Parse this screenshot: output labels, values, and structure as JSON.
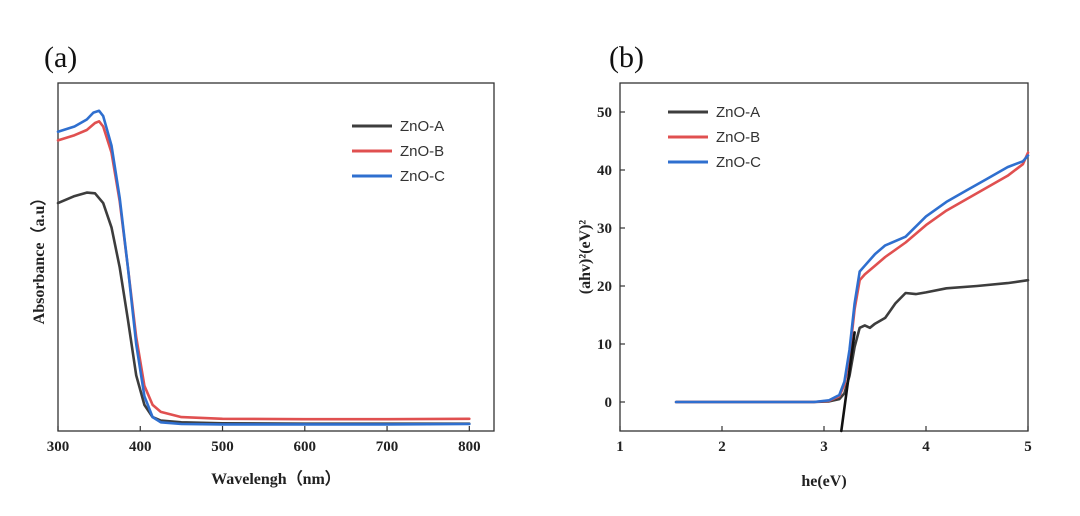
{
  "chart_data": [
    {
      "panel": "(a)",
      "type": "line",
      "xlabel": "Wavelengh（nm）",
      "ylabel": "Absorbance（a.u）",
      "xlim": [
        300,
        830
      ],
      "ylim": [
        0,
        1.0
      ],
      "xticks": [
        300,
        400,
        500,
        600,
        700,
        800
      ],
      "yticks_visible": false,
      "grid": false,
      "legend": "top-right",
      "series": [
        {
          "name": "ZnO-A",
          "color": "#3d3d3d",
          "x": [
            300,
            320,
            335,
            345,
            355,
            365,
            375,
            385,
            395,
            405,
            415,
            425,
            450,
            500,
            600,
            700,
            800
          ],
          "y": [
            0.655,
            0.675,
            0.685,
            0.683,
            0.655,
            0.585,
            0.47,
            0.32,
            0.16,
            0.075,
            0.04,
            0.03,
            0.025,
            0.022,
            0.021,
            0.021,
            0.021
          ]
        },
        {
          "name": "ZnO-B",
          "color": "#e05050",
          "x": [
            300,
            320,
            335,
            345,
            350,
            355,
            365,
            375,
            385,
            395,
            405,
            415,
            425,
            450,
            500,
            600,
            700,
            800
          ],
          "y": [
            0.835,
            0.85,
            0.865,
            0.885,
            0.89,
            0.875,
            0.8,
            0.66,
            0.47,
            0.27,
            0.13,
            0.075,
            0.055,
            0.04,
            0.035,
            0.034,
            0.034,
            0.035
          ]
        },
        {
          "name": "ZnO-C",
          "color": "#2f6fcf",
          "x": [
            300,
            320,
            335,
            343,
            350,
            355,
            365,
            375,
            385,
            395,
            405,
            415,
            425,
            450,
            500,
            600,
            700,
            800
          ],
          "y": [
            0.86,
            0.875,
            0.895,
            0.915,
            0.92,
            0.905,
            0.82,
            0.67,
            0.47,
            0.25,
            0.1,
            0.04,
            0.025,
            0.02,
            0.019,
            0.019,
            0.019,
            0.02
          ]
        }
      ]
    },
    {
      "panel": "(b)",
      "type": "line",
      "xlabel": "he(eV)",
      "ylabel": "(ahv)²(eV)²",
      "xlim": [
        1,
        5
      ],
      "ylim": [
        -5,
        55
      ],
      "xticks": [
        1,
        2,
        3,
        4,
        5
      ],
      "yticks": [
        0,
        10,
        20,
        30,
        40,
        50
      ],
      "grid": false,
      "legend": "top-left",
      "series": [
        {
          "name": "ZnO-A",
          "color": "#3d3d3d",
          "x": [
            1.55,
            2.0,
            2.5,
            2.9,
            3.05,
            3.15,
            3.2,
            3.25,
            3.3,
            3.35,
            3.4,
            3.45,
            3.5,
            3.6,
            3.7,
            3.8,
            3.9,
            4.0,
            4.2,
            4.5,
            4.8,
            5.0
          ],
          "y": [
            0,
            0,
            0,
            0,
            0.1,
            0.5,
            1.5,
            4.5,
            9.5,
            12.8,
            13.2,
            12.8,
            13.5,
            14.5,
            17,
            18.8,
            18.6,
            18.9,
            19.6,
            20.0,
            20.5,
            21.0
          ]
        },
        {
          "name": "ZnO-B",
          "color": "#e05050",
          "x": [
            1.55,
            2.0,
            2.5,
            2.9,
            3.05,
            3.15,
            3.2,
            3.25,
            3.3,
            3.35,
            3.4,
            3.5,
            3.6,
            3.8,
            4.0,
            4.2,
            4.4,
            4.6,
            4.8,
            4.95,
            5.0
          ],
          "y": [
            0,
            0,
            0,
            0,
            0.2,
            1.0,
            3.0,
            8.0,
            16.0,
            21.0,
            22.0,
            23.5,
            25.0,
            27.5,
            30.5,
            33.0,
            35.0,
            37.0,
            39.0,
            41.0,
            43.0
          ]
        },
        {
          "name": "ZnO-C",
          "color": "#2f6fcf",
          "x": [
            1.55,
            2.0,
            2.5,
            2.9,
            3.05,
            3.15,
            3.2,
            3.25,
            3.3,
            3.35,
            3.4,
            3.5,
            3.6,
            3.8,
            4.0,
            4.2,
            4.4,
            4.6,
            4.8,
            4.95,
            5.0
          ],
          "y": [
            0,
            0,
            0,
            0,
            0.3,
            1.2,
            3.5,
            9.0,
            17.0,
            22.5,
            23.5,
            25.5,
            27.0,
            28.5,
            32.0,
            34.5,
            36.5,
            38.5,
            40.5,
            41.5,
            42.5
          ]
        },
        {
          "name": "",
          "color": "#111111",
          "x": [
            3.17,
            3.3
          ],
          "y": [
            -5,
            12
          ]
        }
      ]
    }
  ]
}
